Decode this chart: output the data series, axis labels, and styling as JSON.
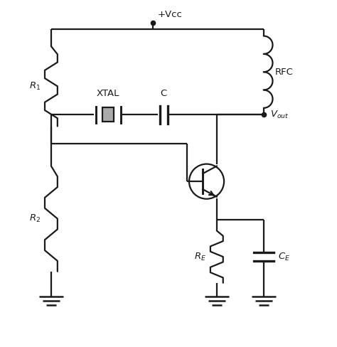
{
  "bg_color": "#ffffff",
  "line_color": "#1a1a1a",
  "lw": 1.6,
  "figsize": [
    4.74,
    4.88
  ],
  "dpi": 100,
  "xlim": [
    0,
    10
  ],
  "ylim": [
    0,
    10.5
  ]
}
